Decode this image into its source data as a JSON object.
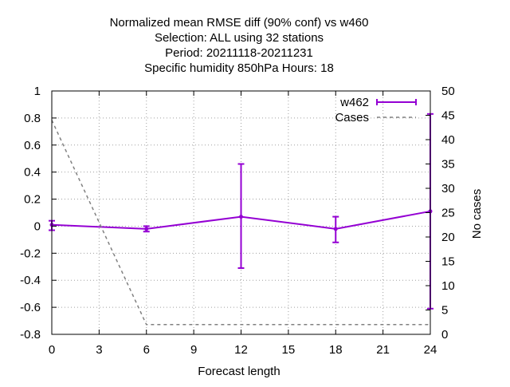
{
  "chart_data": {
    "type": "line",
    "title_lines": [
      "Normalized mean RMSE diff (90% conf) vs w460",
      "Selection: ALL using    32 stations",
      "Period: 20211118-20211231",
      "Specific humidity 850hPa   Hours:  18"
    ],
    "xlabel": "Forecast length",
    "ylabel": "",
    "y2label": "No cases",
    "xlim": [
      0,
      24
    ],
    "ylim": [
      -0.8,
      1
    ],
    "y2lim": [
      0,
      50
    ],
    "xticks": [
      0,
      3,
      6,
      9,
      12,
      15,
      18,
      21,
      24
    ],
    "yticks": [
      -0.8,
      -0.6,
      -0.4,
      -0.2,
      0,
      0.2,
      0.4,
      0.6,
      0.8,
      1
    ],
    "y2ticks": [
      0,
      5,
      10,
      15,
      20,
      25,
      30,
      35,
      40,
      45,
      50
    ],
    "grid": true,
    "legend_position": "top-right",
    "series": [
      {
        "name": "w462",
        "color": "#9400d3",
        "axis": "y",
        "x": [
          0,
          6,
          12,
          18,
          24
        ],
        "y": [
          0.01,
          -0.02,
          0.07,
          -0.02,
          0.11
        ],
        "err_low": [
          -0.03,
          -0.04,
          -0.31,
          -0.12,
          -0.61
        ],
        "err_high": [
          0.04,
          0.0,
          0.46,
          0.07,
          0.83
        ]
      },
      {
        "name": "Cases",
        "color": "#808080",
        "axis": "y2",
        "dashed": true,
        "x": [
          0,
          6,
          12,
          18,
          24
        ],
        "y": [
          44,
          2,
          2,
          2,
          2
        ]
      }
    ]
  }
}
